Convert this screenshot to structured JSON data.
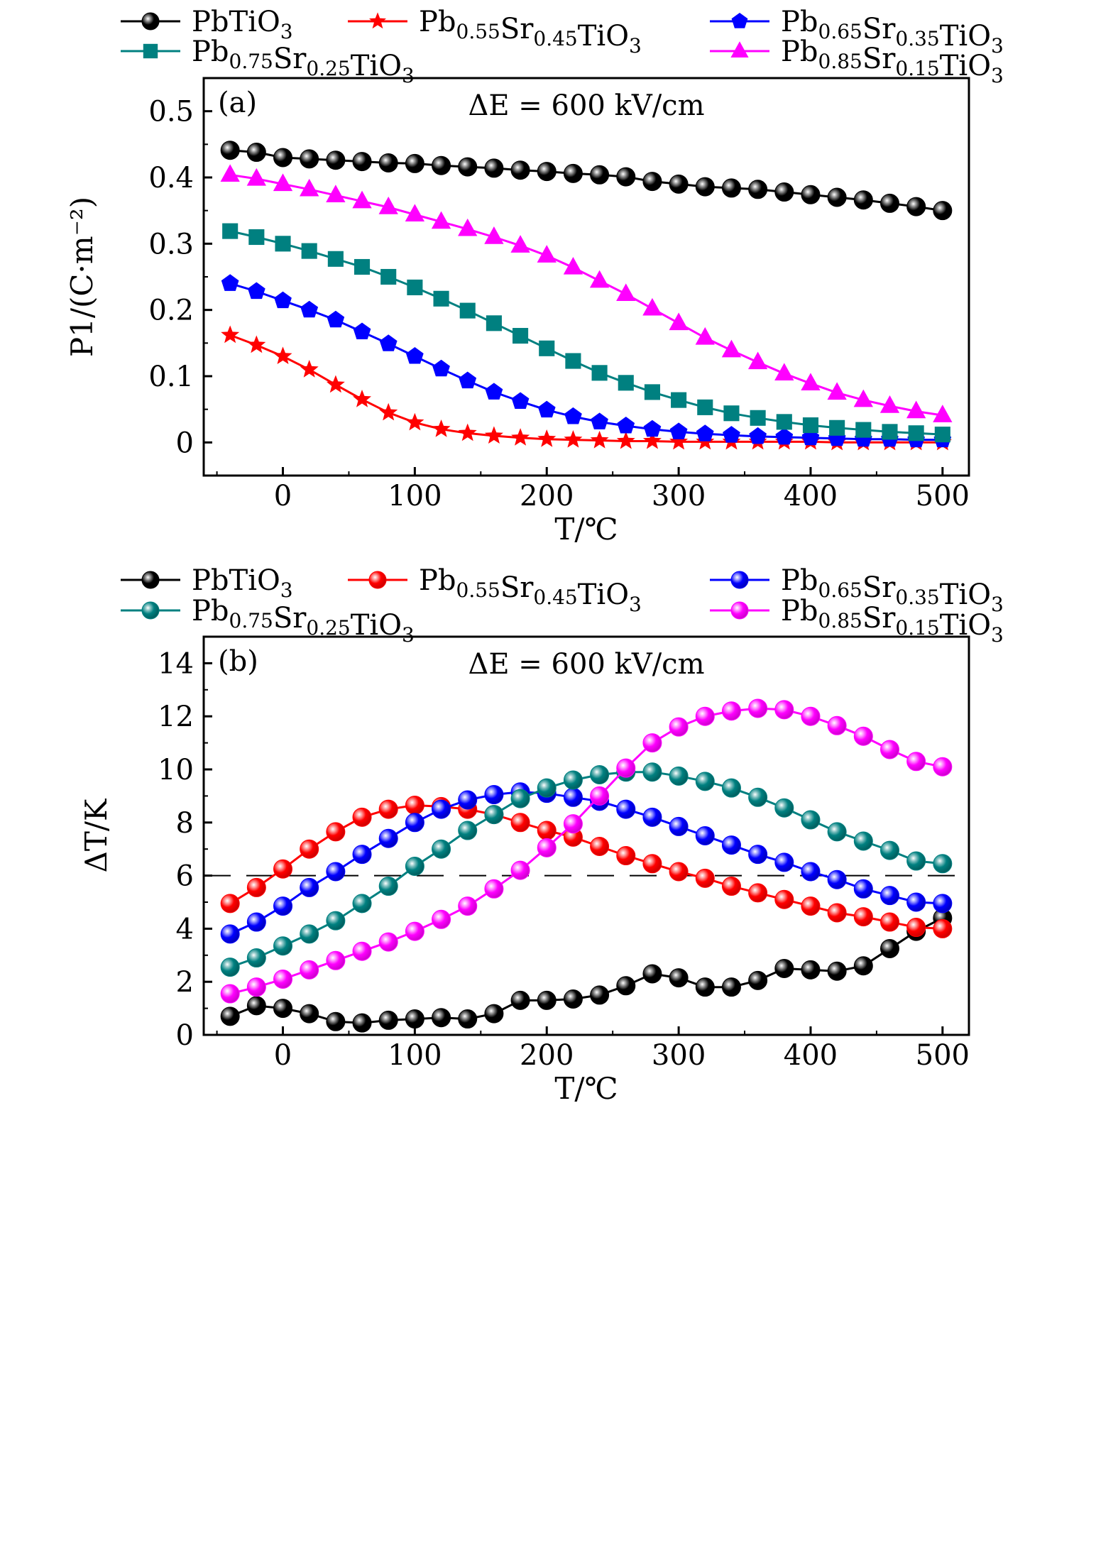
{
  "chart_data": [
    {
      "panel": "(a)",
      "type": "line",
      "annotation": "ΔE = 600 kV/cm",
      "xlabel": "T/℃",
      "ylabel": "P1/(C·m⁻²)",
      "xlim": [
        -60,
        520
      ],
      "ylim": [
        -0.05,
        0.55
      ],
      "xticks": [
        0,
        100,
        200,
        300,
        400,
        500
      ],
      "xtick_labels": [
        "0",
        "100",
        "200",
        "300",
        "400",
        "500"
      ],
      "yticks": [
        0,
        0.1,
        0.2,
        0.3,
        0.4,
        0.5
      ],
      "ytick_labels": [
        "0",
        "0.1",
        "0.2",
        "0.3",
        "0.4",
        "0.5"
      ],
      "grid": false,
      "legend_position": "top-outside",
      "x": [
        -40,
        -20,
        0,
        20,
        40,
        60,
        80,
        100,
        120,
        140,
        160,
        180,
        200,
        220,
        240,
        260,
        280,
        300,
        320,
        340,
        360,
        380,
        400,
        420,
        440,
        460,
        480,
        500
      ],
      "series": [
        {
          "name": "PbTiO3",
          "label_base": "PbTiO",
          "label_sub": "3",
          "color": "#000000",
          "marker": "sphere",
          "values": [
            0.441,
            0.438,
            0.43,
            0.428,
            0.426,
            0.424,
            0.422,
            0.421,
            0.418,
            0.416,
            0.414,
            0.411,
            0.409,
            0.406,
            0.404,
            0.401,
            0.394,
            0.39,
            0.386,
            0.384,
            0.382,
            0.378,
            0.374,
            0.37,
            0.366,
            0.361,
            0.356,
            0.35
          ]
        },
        {
          "name": "Pb0.55Sr0.45TiO3",
          "color": "#ff0000",
          "marker": "star",
          "values": [
            0.162,
            0.147,
            0.13,
            0.11,
            0.087,
            0.065,
            0.045,
            0.03,
            0.02,
            0.014,
            0.01,
            0.007,
            0.005,
            0.004,
            0.003,
            0.002,
            0.002,
            0.001,
            0.001,
            0.001,
            0.001,
            0.001,
            0.001,
            0.0,
            0.0,
            0.0,
            0.0,
            0.0
          ]
        },
        {
          "name": "Pb0.65Sr0.35TiO3",
          "color": "#0000ff",
          "marker": "pentagon",
          "values": [
            0.24,
            0.228,
            0.214,
            0.2,
            0.185,
            0.167,
            0.149,
            0.13,
            0.111,
            0.093,
            0.076,
            0.062,
            0.049,
            0.039,
            0.031,
            0.025,
            0.02,
            0.016,
            0.013,
            0.011,
            0.009,
            0.008,
            0.007,
            0.006,
            0.005,
            0.005,
            0.004,
            0.004
          ]
        },
        {
          "name": "Pb0.75Sr0.25TiO3",
          "color": "#008080",
          "marker": "square",
          "values": [
            0.319,
            0.31,
            0.3,
            0.289,
            0.277,
            0.265,
            0.25,
            0.234,
            0.217,
            0.199,
            0.18,
            0.161,
            0.142,
            0.123,
            0.105,
            0.09,
            0.076,
            0.064,
            0.053,
            0.044,
            0.037,
            0.031,
            0.026,
            0.022,
            0.019,
            0.016,
            0.014,
            0.012
          ]
        },
        {
          "name": "Pb0.85Sr0.15TiO3",
          "color": "#ff00ff",
          "marker": "triangle",
          "values": [
            0.404,
            0.398,
            0.39,
            0.382,
            0.373,
            0.364,
            0.355,
            0.344,
            0.333,
            0.322,
            0.31,
            0.297,
            0.282,
            0.264,
            0.244,
            0.224,
            0.202,
            0.18,
            0.158,
            0.139,
            0.121,
            0.104,
            0.089,
            0.075,
            0.064,
            0.055,
            0.047,
            0.041
          ]
        }
      ]
    },
    {
      "panel": "(b)",
      "type": "line",
      "annotation": "ΔE = 600 kV/cm",
      "xlabel": "T/℃",
      "ylabel": "ΔT/K",
      "xlim": [
        -60,
        520
      ],
      "ylim": [
        0,
        15
      ],
      "xticks": [
        0,
        100,
        200,
        300,
        400,
        500
      ],
      "xtick_labels": [
        "0",
        "100",
        "200",
        "300",
        "400",
        "500"
      ],
      "yticks": [
        0,
        2,
        4,
        6,
        8,
        10,
        12,
        14
      ],
      "ytick_labels": [
        "0",
        "2",
        "4",
        "6",
        "8",
        "10",
        "12",
        "14"
      ],
      "reference_line": {
        "y": 6,
        "style": "dashed"
      },
      "grid": false,
      "legend_position": "top-outside",
      "x": [
        -40,
        -20,
        0,
        20,
        40,
        60,
        80,
        100,
        120,
        140,
        160,
        180,
        200,
        220,
        240,
        260,
        280,
        300,
        320,
        340,
        360,
        380,
        400,
        420,
        440,
        460,
        480,
        500
      ],
      "series": [
        {
          "name": "PbTiO3",
          "color": "#000000",
          "marker": "sphere",
          "values": [
            0.7,
            1.1,
            1.0,
            0.8,
            0.5,
            0.45,
            0.55,
            0.6,
            0.65,
            0.6,
            0.8,
            1.3,
            1.3,
            1.35,
            1.5,
            1.85,
            2.3,
            2.15,
            1.8,
            1.8,
            2.05,
            2.5,
            2.45,
            2.4,
            2.6,
            3.25,
            3.9,
            4.4
          ]
        },
        {
          "name": "Pb0.55Sr0.45TiO3",
          "color": "#ff0000",
          "marker": "sphere",
          "values": [
            4.95,
            5.55,
            6.25,
            7.0,
            7.65,
            8.2,
            8.5,
            8.65,
            8.6,
            8.5,
            8.3,
            8.0,
            7.7,
            7.45,
            7.1,
            6.75,
            6.45,
            6.15,
            5.9,
            5.6,
            5.35,
            5.1,
            4.85,
            4.6,
            4.45,
            4.25,
            4.05,
            4.0
          ]
        },
        {
          "name": "Pb0.65Sr0.35TiO3",
          "color": "#0000ff",
          "marker": "sphere",
          "values": [
            3.8,
            4.25,
            4.85,
            5.55,
            6.15,
            6.8,
            7.4,
            8.0,
            8.5,
            8.85,
            9.05,
            9.15,
            9.1,
            8.95,
            8.8,
            8.5,
            8.2,
            7.85,
            7.5,
            7.15,
            6.8,
            6.5,
            6.15,
            5.85,
            5.5,
            5.25,
            5.0,
            4.95
          ]
        },
        {
          "name": "Pb0.75Sr0.25TiO3",
          "color": "#008080",
          "marker": "sphere",
          "values": [
            2.55,
            2.9,
            3.35,
            3.8,
            4.3,
            4.95,
            5.6,
            6.35,
            7.0,
            7.7,
            8.3,
            8.9,
            9.3,
            9.6,
            9.8,
            9.9,
            9.9,
            9.75,
            9.55,
            9.3,
            8.95,
            8.55,
            8.1,
            7.65,
            7.3,
            6.95,
            6.55,
            6.45
          ]
        },
        {
          "name": "Pb0.85Sr0.15TiO3",
          "color": "#ff00ff",
          "marker": "sphere",
          "values": [
            1.55,
            1.8,
            2.1,
            2.45,
            2.8,
            3.15,
            3.5,
            3.9,
            4.35,
            4.85,
            5.5,
            6.2,
            7.05,
            7.95,
            9.0,
            10.05,
            11.0,
            11.6,
            12.0,
            12.2,
            12.3,
            12.25,
            12.0,
            11.65,
            11.25,
            10.75,
            10.3,
            10.1
          ]
        }
      ]
    }
  ],
  "legend_labels": [
    {
      "base": "PbTiO",
      "parts": [
        [
          "Pb",
          ""
        ],
        [
          "TiO",
          "3"
        ]
      ]
    },
    {
      "parts": [
        [
          "Pb",
          "0.55"
        ],
        [
          "Sr",
          "0.45"
        ],
        [
          "TiO",
          "3"
        ]
      ]
    },
    {
      "parts": [
        [
          "Pb",
          "0.65"
        ],
        [
          "Sr",
          "0.35"
        ],
        [
          "TiO",
          "3"
        ]
      ]
    },
    {
      "parts": [
        [
          "Pb",
          "0.75"
        ],
        [
          "Sr",
          "0.25"
        ],
        [
          "TiO",
          "3"
        ]
      ]
    },
    {
      "parts": [
        [
          "Pb",
          "0.85"
        ],
        [
          "Sr",
          "0.15"
        ],
        [
          "TiO",
          "3"
        ]
      ]
    }
  ]
}
